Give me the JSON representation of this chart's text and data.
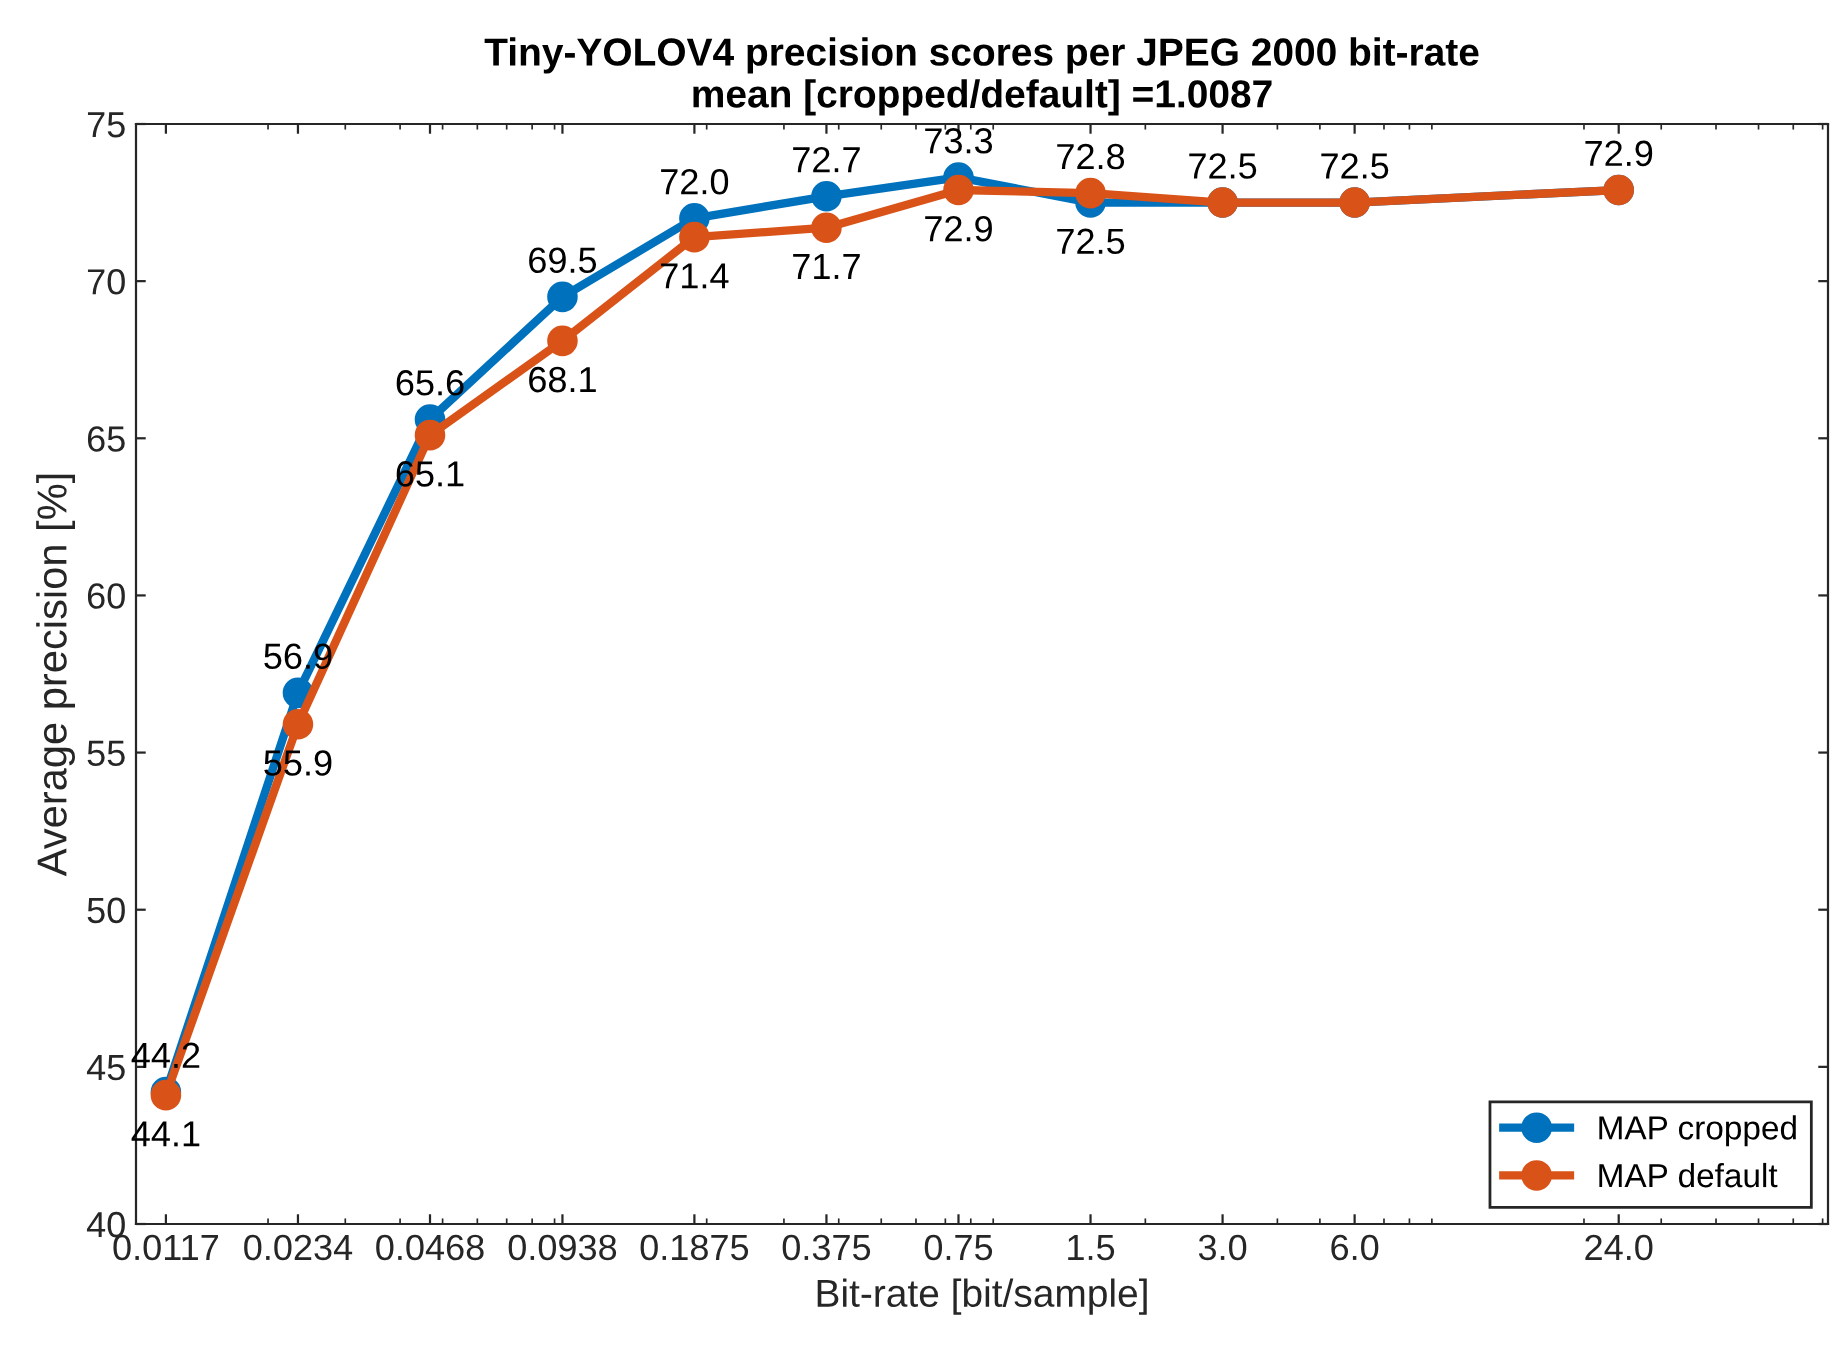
{
  "chart_data": {
    "type": "line",
    "title": "Tiny-YOLOV4 precision scores per JPEG 2000 bit-rate\nmean [cropped/default] =1.0087",
    "xlabel": "Bit-rate [bit/sample]",
    "ylabel": "Average precision [%]",
    "x": [
      0.0117,
      0.0234,
      0.0468,
      0.0938,
      0.1875,
      0.375,
      0.75,
      1.5,
      3.0,
      6.0,
      24.0
    ],
    "series": [
      {
        "name": "MAP cropped",
        "color": "#0072bd",
        "values": [
          44.2,
          56.9,
          65.6,
          69.5,
          72.0,
          72.7,
          73.3,
          72.5,
          72.5,
          72.5,
          72.9
        ],
        "value_labels": [
          "44.2",
          "56.9",
          "65.6",
          "69.5",
          "72.0",
          "72.7",
          "73.3",
          "72.5",
          "72.5",
          "72.5",
          "72.9"
        ]
      },
      {
        "name": "MAP default",
        "color": "#d95319",
        "values": [
          44.1,
          55.9,
          65.1,
          68.1,
          71.4,
          71.7,
          72.9,
          72.8,
          72.5,
          72.5,
          72.9
        ],
        "value_labels": [
          "44.1",
          "55.9",
          "65.1",
          "68.1",
          "71.4",
          "71.7",
          "72.9",
          "72.8",
          null,
          null,
          null
        ]
      }
    ],
    "log": "x",
    "xlim": [
      0.01,
      72
    ],
    "xticks": [
      0.0117,
      0.0234,
      0.0468,
      0.0938,
      0.1875,
      0.375,
      0.75,
      1.5,
      {
        "value": 3,
        "label": "3.0"
      },
      {
        "value": 6,
        "label": "6.0"
      },
      {
        "value": 24,
        "label": "24.0"
      }
    ],
    "ylim": [
      40,
      75
    ],
    "yticks": [
      40,
      45,
      50,
      55,
      60,
      65,
      70,
      75
    ],
    "grid": false,
    "legend": "bottom right",
    "marker": "circle",
    "line_style": "solid"
  }
}
